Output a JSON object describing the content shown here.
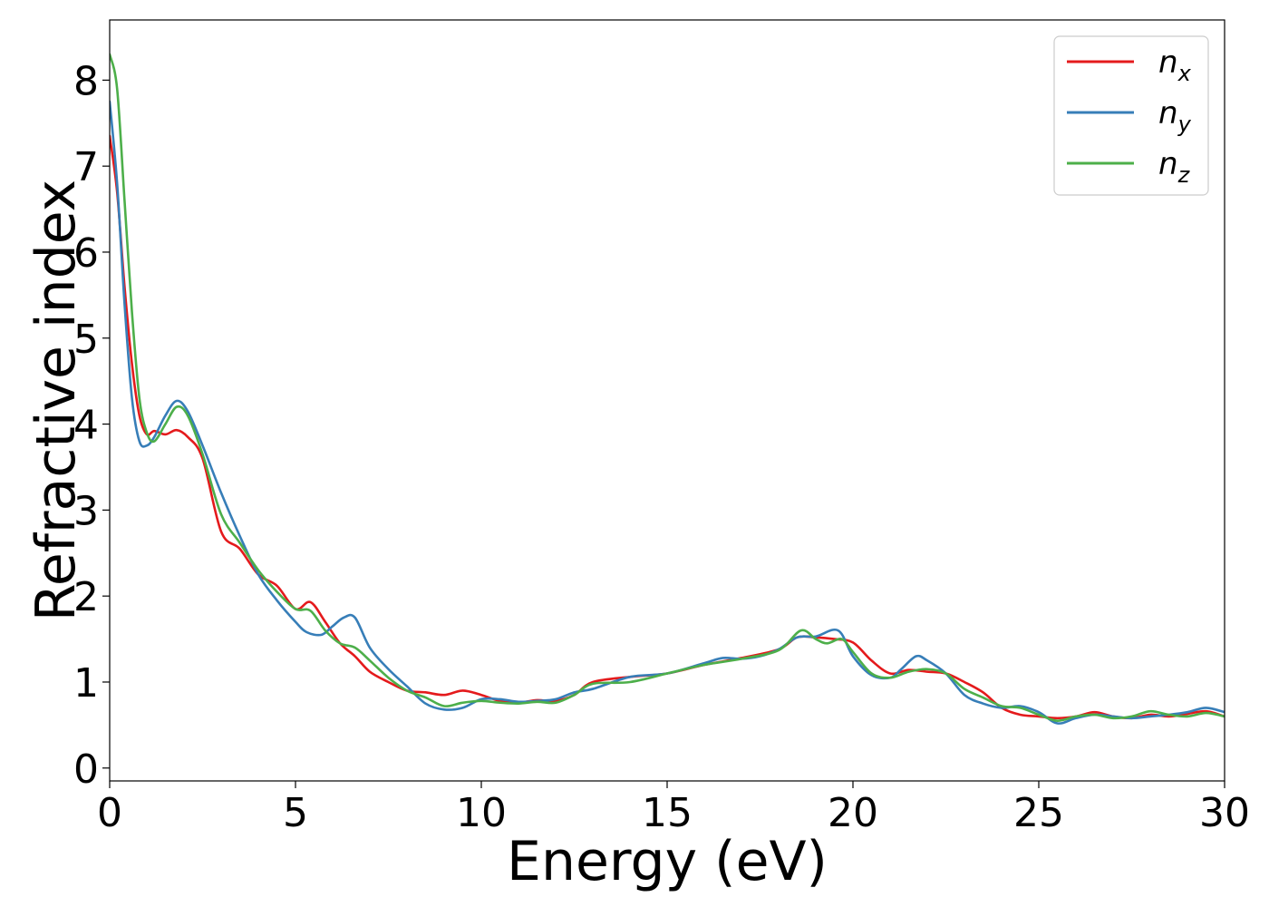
{
  "chart_data": {
    "type": "line",
    "title": "",
    "xlabel": "Energy (eV)",
    "ylabel": "Refractive index",
    "xlim": [
      0,
      30
    ],
    "ylim": [
      -0.15,
      8.7
    ],
    "xticks": [
      0,
      5,
      10,
      15,
      20,
      25,
      30
    ],
    "yticks": [
      0,
      1,
      2,
      3,
      4,
      5,
      6,
      7,
      8
    ],
    "grid": false,
    "legend_position": "top-right",
    "series": [
      {
        "name": "n_x",
        "label_base": "n",
        "label_sub": "x",
        "color": "#e41a1c",
        "x": [
          0,
          0.2,
          0.4,
          0.6,
          0.8,
          1.0,
          1.2,
          1.5,
          1.8,
          2.1,
          2.5,
          3.0,
          3.5,
          4.0,
          4.5,
          5.0,
          5.4,
          5.8,
          6.2,
          6.6,
          7.0,
          7.5,
          8.0,
          8.5,
          9.0,
          9.5,
          10.0,
          10.5,
          11.0,
          11.5,
          12.0,
          12.5,
          13.0,
          14.0,
          15.0,
          16.0,
          17.0,
          18.0,
          18.5,
          19.0,
          19.5,
          20.0,
          20.5,
          21.0,
          21.5,
          22.0,
          22.5,
          23.0,
          23.5,
          24.0,
          24.5,
          25.0,
          25.5,
          26.0,
          26.5,
          27.0,
          27.5,
          28.0,
          28.5,
          29.0,
          29.5,
          30.0
        ],
        "y": [
          7.35,
          6.7,
          5.6,
          4.7,
          4.1,
          3.88,
          3.92,
          3.88,
          3.93,
          3.85,
          3.6,
          2.75,
          2.55,
          2.25,
          2.12,
          1.85,
          1.93,
          1.7,
          1.45,
          1.3,
          1.12,
          1.0,
          0.9,
          0.88,
          0.85,
          0.9,
          0.85,
          0.78,
          0.76,
          0.79,
          0.78,
          0.85,
          1.0,
          1.06,
          1.1,
          1.2,
          1.28,
          1.38,
          1.52,
          1.52,
          1.5,
          1.46,
          1.25,
          1.1,
          1.14,
          1.12,
          1.1,
          1.0,
          0.88,
          0.7,
          0.62,
          0.6,
          0.58,
          0.6,
          0.65,
          0.6,
          0.58,
          0.62,
          0.6,
          0.63,
          0.66,
          0.6
        ]
      },
      {
        "name": "n_y",
        "label_base": "n",
        "label_sub": "y",
        "color": "#377eb8",
        "x": [
          0,
          0.2,
          0.4,
          0.6,
          0.8,
          1.0,
          1.2,
          1.5,
          1.8,
          2.1,
          2.5,
          3.0,
          3.5,
          4.0,
          4.5,
          5.0,
          5.3,
          5.7,
          6.0,
          6.3,
          6.6,
          7.0,
          7.5,
          8.0,
          8.5,
          9.0,
          9.5,
          10.0,
          10.5,
          11.0,
          11.5,
          12.0,
          12.5,
          13.0,
          14.0,
          15.0,
          16.0,
          16.5,
          17.0,
          17.5,
          18.0,
          18.5,
          19.0,
          19.6,
          20.0,
          20.5,
          21.0,
          21.3,
          21.7,
          22.0,
          22.5,
          23.0,
          23.5,
          24.0,
          24.5,
          25.0,
          25.5,
          26.0,
          26.5,
          27.0,
          27.5,
          28.0,
          28.5,
          29.0,
          29.5,
          30.0
        ],
        "y": [
          7.75,
          6.8,
          5.4,
          4.3,
          3.8,
          3.75,
          3.85,
          4.1,
          4.27,
          4.15,
          3.75,
          3.2,
          2.7,
          2.25,
          1.95,
          1.7,
          1.58,
          1.55,
          1.65,
          1.75,
          1.75,
          1.4,
          1.15,
          0.95,
          0.75,
          0.68,
          0.7,
          0.8,
          0.8,
          0.77,
          0.78,
          0.8,
          0.88,
          0.92,
          1.06,
          1.1,
          1.22,
          1.28,
          1.27,
          1.3,
          1.38,
          1.52,
          1.53,
          1.6,
          1.3,
          1.08,
          1.05,
          1.15,
          1.3,
          1.25,
          1.1,
          0.85,
          0.75,
          0.7,
          0.72,
          0.65,
          0.52,
          0.58,
          0.62,
          0.6,
          0.58,
          0.6,
          0.62,
          0.65,
          0.7,
          0.65
        ]
      },
      {
        "name": "n_z",
        "label_base": "n",
        "label_sub": "z",
        "color": "#4daf4a",
        "x": [
          0,
          0.2,
          0.4,
          0.6,
          0.8,
          1.0,
          1.2,
          1.5,
          1.8,
          2.1,
          2.5,
          3.0,
          3.5,
          4.0,
          4.5,
          5.0,
          5.4,
          5.8,
          6.2,
          6.6,
          7.0,
          7.5,
          8.0,
          8.5,
          9.0,
          9.5,
          10.0,
          10.5,
          11.0,
          11.5,
          12.0,
          12.5,
          13.0,
          14.0,
          15.0,
          16.0,
          17.0,
          18.0,
          18.6,
          19.0,
          19.3,
          19.7,
          20.0,
          20.5,
          21.0,
          21.5,
          22.0,
          22.5,
          23.0,
          23.5,
          24.0,
          24.5,
          25.0,
          25.5,
          26.0,
          26.5,
          27.0,
          27.5,
          28.0,
          28.5,
          29.0,
          29.5,
          30.0
        ],
        "y": [
          8.3,
          7.9,
          6.6,
          5.3,
          4.3,
          3.9,
          3.8,
          4.0,
          4.2,
          4.1,
          3.65,
          2.95,
          2.62,
          2.3,
          2.05,
          1.85,
          1.83,
          1.6,
          1.45,
          1.4,
          1.25,
          1.05,
          0.9,
          0.82,
          0.72,
          0.76,
          0.78,
          0.76,
          0.75,
          0.77,
          0.76,
          0.85,
          0.98,
          1.0,
          1.1,
          1.2,
          1.27,
          1.37,
          1.6,
          1.5,
          1.45,
          1.5,
          1.35,
          1.1,
          1.05,
          1.12,
          1.15,
          1.1,
          0.92,
          0.82,
          0.72,
          0.7,
          0.62,
          0.55,
          0.6,
          0.62,
          0.58,
          0.6,
          0.66,
          0.62,
          0.6,
          0.64,
          0.6
        ]
      }
    ]
  }
}
